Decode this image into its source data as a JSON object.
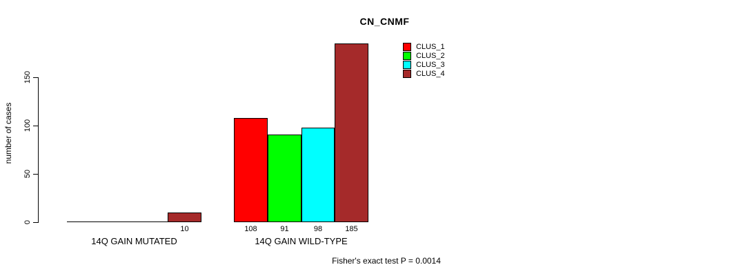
{
  "title": "CN_CNMF",
  "y_axis": {
    "label": "number of cases"
  },
  "footer": {
    "text": "Fisher's exact test P = 0.0014"
  },
  "legend": {
    "items": [
      {
        "label": "CLUS_1",
        "color": "#FF0000"
      },
      {
        "label": "CLUS_2",
        "color": "#00FF00"
      },
      {
        "label": "CLUS_3",
        "color": "#00FFFF"
      },
      {
        "label": "CLUS_4",
        "color": "#A52A2A"
      }
    ]
  },
  "chart_data": {
    "type": "bar",
    "title": "CN_CNMF",
    "xlabel": "",
    "ylabel": "number of cases",
    "ylim": [
      0,
      190
    ],
    "yticks": [
      0,
      50,
      100,
      150
    ],
    "grid": false,
    "legend_position": "top-right-inside",
    "categories": [
      "14Q GAIN MUTATED",
      "14Q GAIN WILD-TYPE"
    ],
    "series": [
      {
        "name": "CLUS_1",
        "color": "#FF0000",
        "values": [
          0,
          108
        ]
      },
      {
        "name": "CLUS_2",
        "color": "#00FF00",
        "values": [
          0,
          91
        ]
      },
      {
        "name": "CLUS_3",
        "color": "#00FFFF",
        "values": [
          0,
          98
        ]
      },
      {
        "name": "CLUS_4",
        "color": "#A52A2A",
        "values": [
          10,
          185
        ]
      }
    ],
    "bar_value_labels": [
      [
        "",
        "",
        "",
        "10"
      ],
      [
        "108",
        "91",
        "98",
        "185"
      ]
    ],
    "annotation": "Fisher's exact test P = 0.0014"
  }
}
